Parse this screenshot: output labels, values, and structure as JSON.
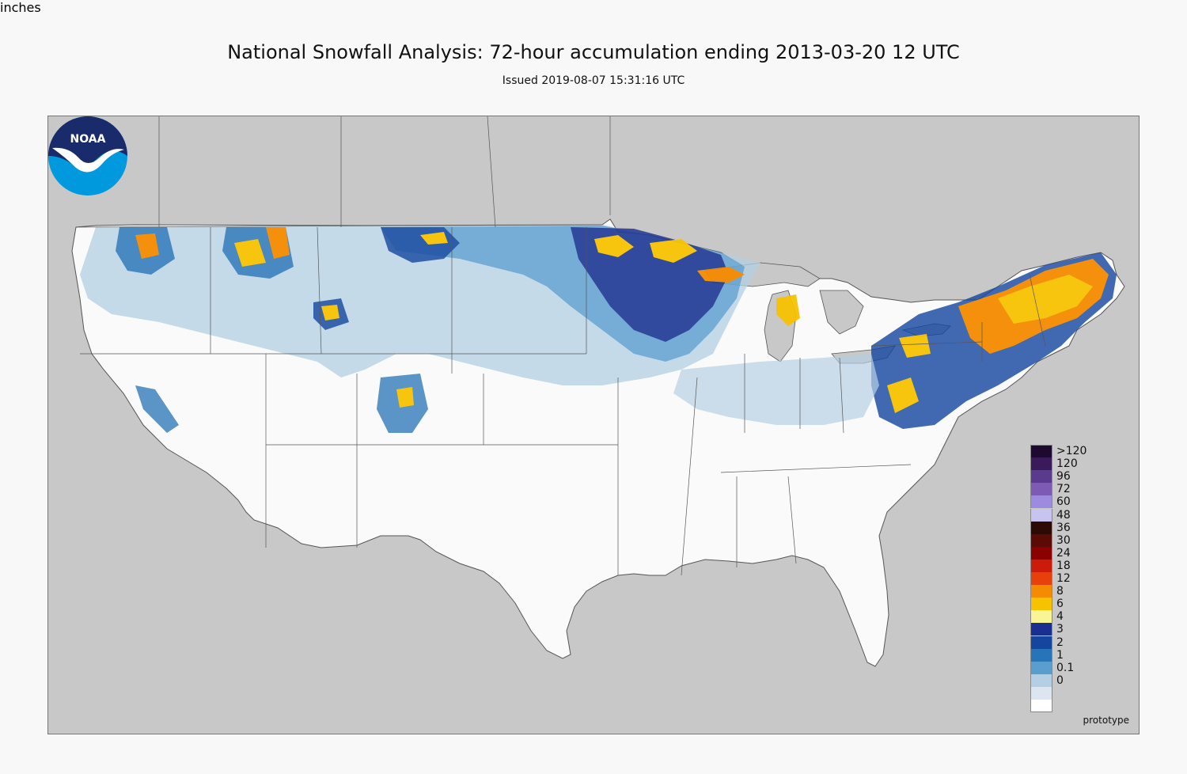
{
  "title": "National Snowfall Analysis: 72-hour accumulation ending 2013-03-20 12 UTC",
  "subtitle": "Issued 2019-08-07 15:31:16 UTC",
  "watermark": "prototype",
  "logo": {
    "text": "NOAA",
    "icon": "noaa-logo-icon"
  },
  "legend": {
    "units": "inches",
    "levels": [
      {
        "label": ">120",
        "color": "#1e0a2e"
      },
      {
        "label": "120",
        "color": "#3b1a5c"
      },
      {
        "label": "96",
        "color": "#5a3a8c"
      },
      {
        "label": "72",
        "color": "#7d5bb5"
      },
      {
        "label": "60",
        "color": "#9d8be0"
      },
      {
        "label": "48",
        "color": "#c8c4f0"
      },
      {
        "label": "36",
        "color": "#2e0a05"
      },
      {
        "label": "30",
        "color": "#5c0a05"
      },
      {
        "label": "24",
        "color": "#8b0000"
      },
      {
        "label": "18",
        "color": "#cc1b0a"
      },
      {
        "label": "12",
        "color": "#e8400a"
      },
      {
        "label": "8",
        "color": "#f58b00"
      },
      {
        "label": "6",
        "color": "#f7c200"
      },
      {
        "label": "4",
        "color": "#f9f596"
      },
      {
        "label": "3",
        "color": "#1a2f8f"
      },
      {
        "label": "2",
        "color": "#1446a0"
      },
      {
        "label": "1",
        "color": "#2874b8"
      },
      {
        "label": "0.1",
        "color": "#5a9ed0"
      },
      {
        "label": "0",
        "color": "#b4cfe4"
      }
    ],
    "bottom_colors": [
      "#dbe6f0",
      "#ffffff"
    ]
  },
  "colors": {
    "background": "#f8f8f8",
    "ocean_land_outside": "#c8c8c8",
    "us_land": "#fafafa",
    "border": "#555555"
  }
}
